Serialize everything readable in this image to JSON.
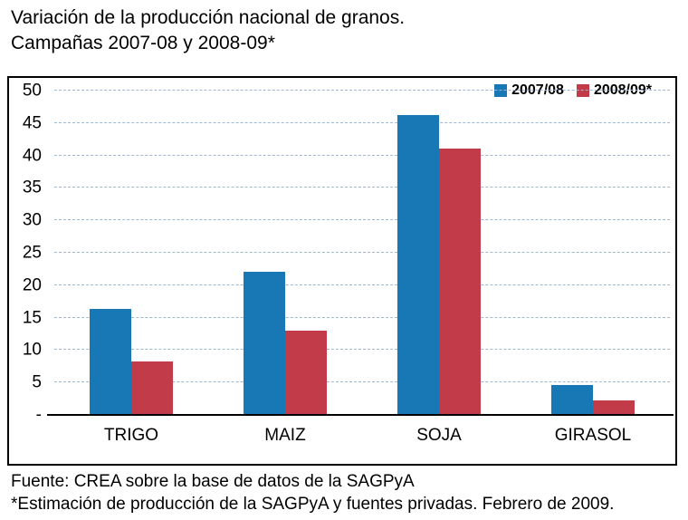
{
  "title": {
    "line1": "Variación de la producción nacional de granos.",
    "line2": "Campañas 2007-08 y 2008-09*"
  },
  "footer": {
    "line1": "Fuente: CREA sobre la base de datos de la SAGPyA",
    "line2": "*Estimación de producción de la SAGPyA y fuentes privadas. Febrero de 2009."
  },
  "colors": {
    "series1": "#1878b6",
    "series2": "#c23b49",
    "gridline": "#9bb8d9",
    "axis": "#000000"
  },
  "chart_data": {
    "type": "bar",
    "title": "Variación de la producción nacional de granos. Campañas 2007-08 y 2008-09*",
    "categories": [
      "TRIGO",
      "MAIZ",
      "SOJA",
      "GIRASOL"
    ],
    "series": [
      {
        "name": "2007/08",
        "color": "#1878b6",
        "values": [
          16.3,
          22,
          46.2,
          4.6
        ]
      },
      {
        "name": "2008/09*",
        "color": "#c23b49",
        "values": [
          8.3,
          13,
          41,
          2.3
        ]
      }
    ],
    "xlabel": "",
    "ylabel": "",
    "ylim": [
      0,
      50
    ],
    "ytick_step": 5,
    "ytick_labels": [
      "-",
      "5",
      "10",
      "15",
      "20",
      "25",
      "30",
      "35",
      "40",
      "45",
      "50"
    ],
    "grid": true,
    "legend_position": "top-right"
  }
}
